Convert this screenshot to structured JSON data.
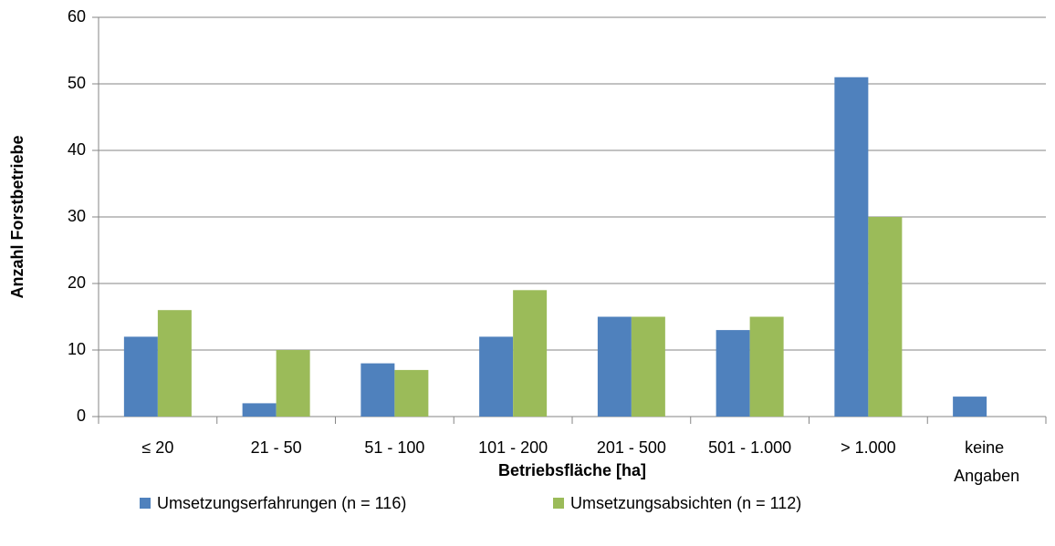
{
  "chart_data": {
    "type": "bar",
    "x_label": "Betriebsfläche [ha]",
    "y_label": "Anzahl Forstbetriebe",
    "categories": [
      "≤ 20",
      "21 - 50",
      "51 - 100",
      "101 - 200",
      "201 - 500",
      "501 - 1.000",
      "> 1.000",
      "keine Angaben"
    ],
    "series": [
      {
        "name": "Umsetzungserfahrungen (n = 116)",
        "color": "#4f81bd",
        "values": [
          12,
          2,
          8,
          12,
          15,
          13,
          51,
          3
        ]
      },
      {
        "name": "Umsetzungsabsichten (n = 112)",
        "color": "#9bbb59",
        "values": [
          16,
          10,
          7,
          19,
          15,
          15,
          30,
          null
        ]
      }
    ],
    "ylim": [
      0,
      60
    ],
    "yticks": [
      0,
      10,
      20,
      30,
      40,
      50,
      60
    ],
    "grid": true,
    "legend": "bottom"
  }
}
